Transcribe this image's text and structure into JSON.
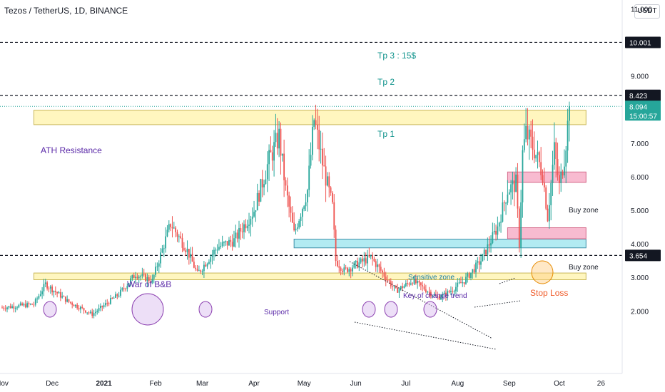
{
  "header": {
    "title": "Tezos / TetherUS, 1D, BINANCE",
    "currency": "USDT"
  },
  "chart_data": {
    "type": "candlestick",
    "symbol": "Tezos / TetherUS",
    "interval": "1D",
    "exchange": "BINANCE",
    "ylim": [
      1.3,
      11.5
    ],
    "y_ticks": [
      "2.000",
      "3.000",
      "4.000",
      "5.000",
      "6.000",
      "7.000",
      "8.000",
      "9.000",
      "11.000"
    ],
    "x_ticks": [
      "Nov",
      "Dec",
      "2021",
      "Feb",
      "Mar",
      "Apr",
      "May",
      "Jun",
      "Jul",
      "Aug",
      "Sep",
      "Oct",
      "26"
    ],
    "x_tick_year_index": 2,
    "key_points": [
      {
        "date": "Nov 1",
        "price": 2.1
      },
      {
        "date": "Nov 20",
        "price": 2.2
      },
      {
        "date": "Nov 27",
        "price": 2.8
      },
      {
        "date": "Dec 10",
        "price": 2.3
      },
      {
        "date": "Dec 25",
        "price": 1.9
      },
      {
        "date": "Jan 10",
        "price": 2.5
      },
      {
        "date": "Jan 20",
        "price": 3.1
      },
      {
        "date": "Jan 30",
        "price": 2.9
      },
      {
        "date": "Feb 10",
        "price": 4.6
      },
      {
        "date": "Feb 20",
        "price": 3.8
      },
      {
        "date": "Feb 26",
        "price": 3.1
      },
      {
        "date": "Mar 10",
        "price": 3.9
      },
      {
        "date": "Mar 20",
        "price": 4.1
      },
      {
        "date": "Apr 1",
        "price": 5.0
      },
      {
        "date": "Apr 10",
        "price": 6.5
      },
      {
        "date": "Apr 16",
        "price": 7.2
      },
      {
        "date": "Apr 20",
        "price": 5.6
      },
      {
        "date": "Apr 25",
        "price": 4.3
      },
      {
        "date": "May 3",
        "price": 5.6
      },
      {
        "date": "May 7",
        "price": 7.7
      },
      {
        "date": "May 12",
        "price": 6.4
      },
      {
        "date": "May 18",
        "price": 5.1
      },
      {
        "date": "May 20",
        "price": 3.5
      },
      {
        "date": "May 25",
        "price": 3.2
      },
      {
        "date": "Jun 10",
        "price": 3.6
      },
      {
        "date": "Jun 25",
        "price": 2.6
      },
      {
        "date": "Jul 5",
        "price": 2.9
      },
      {
        "date": "Jul 20",
        "price": 2.4
      },
      {
        "date": "Jul 25",
        "price": 2.5
      },
      {
        "date": "Aug 5",
        "price": 2.9
      },
      {
        "date": "Aug 15",
        "price": 3.5
      },
      {
        "date": "Aug 25",
        "price": 4.5
      },
      {
        "date": "Aug 31",
        "price": 5.6
      },
      {
        "date": "Sep 5",
        "price": 5.8
      },
      {
        "date": "Sep 7",
        "price": 4.0
      },
      {
        "date": "Sep 9",
        "price": 6.7
      },
      {
        "date": "Sep 11",
        "price": 7.3
      },
      {
        "date": "Sep 16",
        "price": 6.8
      },
      {
        "date": "Sep 21",
        "price": 6.1
      },
      {
        "date": "Sep 24",
        "price": 4.8
      },
      {
        "date": "Sep 28",
        "price": 6.8
      },
      {
        "date": "Oct 1",
        "price": 5.7
      },
      {
        "date": "Oct 4",
        "price": 6.6
      },
      {
        "date": "Oct 7",
        "price": 8.0
      }
    ],
    "horizontal_lines": [
      {
        "price": 10.001,
        "label": "10.001"
      },
      {
        "price": 8.423,
        "label": "8.423"
      },
      {
        "price": 3.654,
        "label": "3.654"
      }
    ],
    "last_price": {
      "price": 8.094,
      "label": "8.094",
      "countdown": "15:00:57"
    },
    "zones": [
      {
        "name": "ATH Resistance",
        "from": 7.55,
        "to": 7.98,
        "start": "Nov 20",
        "end": "Oct 17",
        "kind": "yellow"
      },
      {
        "name": "Support",
        "from": 2.93,
        "to": 3.13,
        "start": "Nov 20",
        "end": "Oct 17",
        "kind": "yellow"
      },
      {
        "name": "Sensitive zone",
        "from": 3.88,
        "to": 4.14,
        "start": "Apr 25",
        "end": "Oct 17",
        "kind": "cyan"
      },
      {
        "name": "Buy zone",
        "from": 5.83,
        "to": 6.14,
        "start": "Aug 31",
        "end": "Oct 17",
        "kind": "pink"
      },
      {
        "name": "Buy zone",
        "from": 4.15,
        "to": 4.48,
        "start": "Aug 31",
        "end": "Oct 17",
        "kind": "pink"
      }
    ],
    "annotations": {
      "tp3": "Tp 3 : 15$",
      "tp2": "Tp 2",
      "tp1": "Tp 1",
      "war": "War of B&B",
      "key_change": "Key of change trend",
      "stop_loss": "Stop Loss"
    },
    "colors": {
      "up": "#26a69a",
      "down": "#ef5350",
      "annotation_teal": "#12948d",
      "annotation_purple": "#5b2aa8",
      "stop_loss": "#f05a28"
    }
  }
}
